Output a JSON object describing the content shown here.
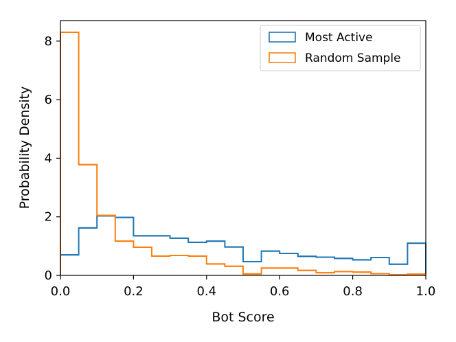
{
  "chart_data": {
    "type": "histogram",
    "xlabel": "Bot Score",
    "ylabel": "Probability Density",
    "xlim": [
      0.0,
      1.0
    ],
    "ylim": [
      0.0,
      8.7
    ],
    "xticks": [
      "0.0",
      "0.2",
      "0.4",
      "0.6",
      "0.8",
      "1.0"
    ],
    "yticks": [
      "0",
      "2",
      "4",
      "6",
      "8"
    ],
    "bin_edges": [
      0.0,
      0.05,
      0.1,
      0.15,
      0.2,
      0.25,
      0.3,
      0.35,
      0.4,
      0.45,
      0.5,
      0.55,
      0.6,
      0.65,
      0.7,
      0.75,
      0.8,
      0.85,
      0.9,
      0.95,
      1.0
    ],
    "series": [
      {
        "name": "Most Active",
        "color": "#1f77b4",
        "values": [
          0.7,
          1.62,
          2.03,
          1.98,
          1.35,
          1.35,
          1.27,
          1.13,
          1.17,
          0.97,
          0.47,
          0.83,
          0.75,
          0.65,
          0.62,
          0.58,
          0.53,
          0.61,
          0.38,
          1.1
        ]
      },
      {
        "name": "Random Sample",
        "color": "#ff7f0e",
        "values": [
          8.3,
          3.78,
          2.05,
          1.17,
          0.96,
          0.66,
          0.68,
          0.66,
          0.39,
          0.31,
          0.05,
          0.25,
          0.25,
          0.17,
          0.09,
          0.13,
          0.11,
          0.06,
          0.02,
          0.04
        ]
      }
    ],
    "legend_position": "top-right"
  }
}
